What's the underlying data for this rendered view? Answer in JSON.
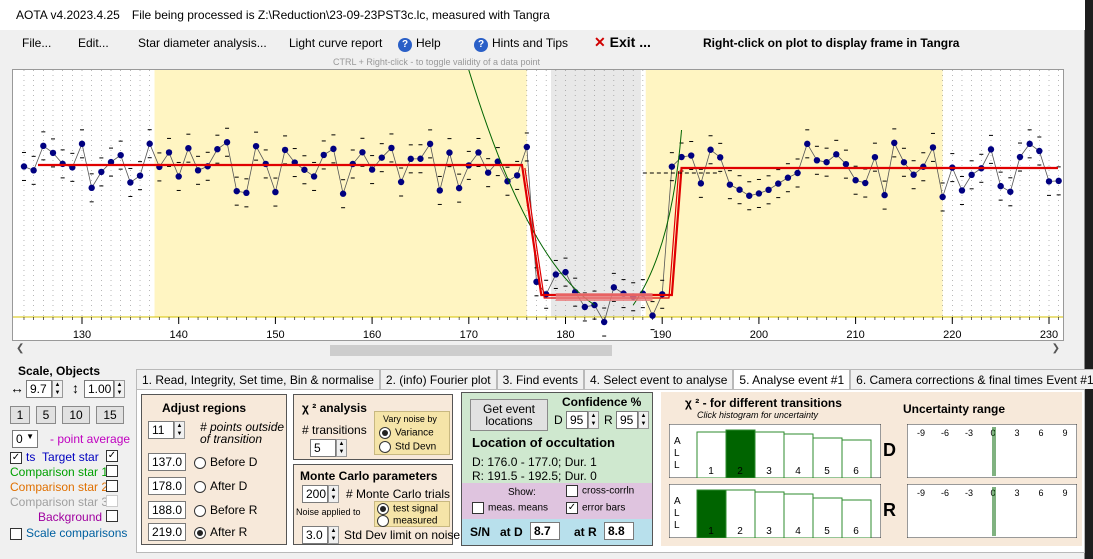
{
  "title": {
    "app": "AOTA v4.2023.4.25",
    "file": "File being processed is Z:\\Reduction\\23-09-23PST3c.lc, measured with Tangra"
  },
  "menu": {
    "file": "File...",
    "edit": "Edit...",
    "star_diameter": "Star diameter analysis...",
    "light_curve": "Light curve report",
    "help": "Help",
    "hints": "Hints and Tips",
    "exit": "Exit ...",
    "right_click_hint": "Right-click on plot to display frame in Tangra",
    "ctrl_hint": "CTRL + Right-click  -  to toggle validity of a data point"
  },
  "plot": {
    "x_ticks": [
      "130",
      "140",
      "150",
      "160",
      "170",
      "180",
      "190",
      "200",
      "210",
      "220",
      "230"
    ],
    "colors": {
      "points": "#000080",
      "model": "#e00000",
      "fit": "#006400",
      "shade": "#fff5c2",
      "sel": "#e8e8e8"
    }
  },
  "left": {
    "scale_title": "Scale,  Objects",
    "scale_a": "9.7",
    "scale_b": "1.00",
    "presets": [
      "1",
      "5",
      "10",
      "15"
    ],
    "point_avg_value": "0",
    "point_avg_label": "- point average",
    "ts_label": "ts",
    "target": "Target star",
    "comp1": "Comparison star 1",
    "comp2": "Comparison star 2",
    "comp3": "Comparison star 3",
    "background": "Background",
    "scale_comp": "Scale comparisons"
  },
  "tabs": [
    "1.  Read, Integrity, Set time, Bin & normalise",
    "2. (info)  Fourier plot",
    "3. Find events",
    "4. Select event to analyse",
    "5. Analyse event #1",
    "6. Camera corrections & final times Event #1"
  ],
  "adjust": {
    "title": "Adjust regions",
    "points_value": "11",
    "points_label": "# points outside of transition",
    "before_d": "137.0",
    "after_d": "178.0",
    "before_r": "188.0",
    "after_r": "219.0",
    "before_d_label": "Before D",
    "after_d_label": "After D",
    "before_r_label": "Before R",
    "after_r_label": "After R"
  },
  "chi": {
    "title": "χ ² analysis",
    "transitions_label": "# transitions",
    "transitions_value": "5",
    "vary_label": "Vary noise by",
    "variance": "Variance",
    "stddev": "Std Devn"
  },
  "monte": {
    "title": "Monte Carlo parameters",
    "trials_value": "200",
    "trials_label": "# Monte Carlo trials",
    "noise_label": "Noise applied to",
    "test_signal": "test signal",
    "measured": "measured",
    "sd_value": "3.0",
    "sd_label": "Std Dev limit on noise"
  },
  "event": {
    "get_btn": "Get event locations",
    "conf_title": "Confidence %",
    "d_label": "D",
    "d_value": "95",
    "r_label": "R",
    "r_value": "95",
    "loc_title": "Location of occultation",
    "d_line": "D: 176.0 - 177.0; Dur. 1",
    "r_line": "R: 191.5 - 192.5; Dur. 0",
    "show_label": "Show:",
    "cross_corr": "cross-corrln",
    "meas_means": "meas. means",
    "error_bars": "error bars",
    "sn_label": "S/N",
    "at_d": "at D",
    "at_d_value": "8.7",
    "at_r": "at R",
    "at_r_value": "8.8"
  },
  "chi_hist": {
    "title": "χ ² - for different transitions",
    "subtitle": "Click histogram for uncertainty",
    "all_label": "A L L",
    "bins": [
      "1",
      "2",
      "3",
      "4",
      "5",
      "6"
    ],
    "d_letter": "D",
    "r_letter": "R",
    "d_selected": 2,
    "r_selected": 1
  },
  "uncertainty": {
    "title": "Uncertainty range",
    "ticks": [
      "-9",
      "-6",
      "-3",
      "0",
      "3",
      "6",
      "9"
    ]
  }
}
